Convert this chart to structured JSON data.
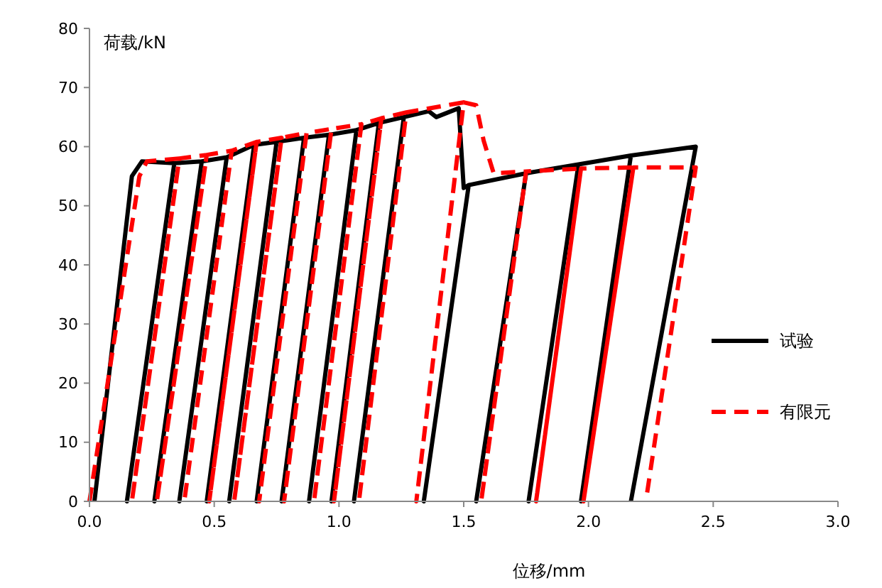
{
  "chart_data": {
    "type": "line",
    "xlabel": "位移/mm",
    "ylabel": "荷载/kN",
    "xlim": [
      0,
      3
    ],
    "ylim": [
      0,
      80
    ],
    "xticks": [
      {
        "value": 0,
        "label": "0.0"
      },
      {
        "value": 0.5,
        "label": "0.5"
      },
      {
        "value": 1,
        "label": "1.0"
      },
      {
        "value": 1.5,
        "label": "1.5"
      },
      {
        "value": 2,
        "label": "2.0"
      },
      {
        "value": 2.5,
        "label": "2.5"
      },
      {
        "value": 3,
        "label": "3.0"
      }
    ],
    "yticks": [
      0,
      10,
      20,
      30,
      40,
      50,
      60,
      70,
      80
    ],
    "grid": false,
    "legend": "right",
    "marker": "none",
    "series": [
      {
        "name": "试验",
        "color": "#000000",
        "line_style": "solid",
        "x": [
          0.02,
          0.17,
          0.21,
          0.34,
          0.15,
          0.34,
          0.45,
          0.26,
          0.45,
          0.55,
          0.36,
          0.55,
          0.66,
          0.47,
          0.66,
          0.75,
          0.56,
          0.75,
          0.86,
          0.67,
          0.86,
          0.96,
          0.77,
          0.96,
          1.07,
          0.88,
          1.07,
          1.16,
          0.97,
          1.16,
          1.26,
          1.06,
          1.26,
          1.36,
          1.39,
          1.48,
          1.5,
          1.52,
          1.34,
          1.52,
          1.75,
          1.55,
          1.75,
          1.96,
          1.76,
          1.96,
          2.17,
          1.97,
          2.17,
          2.43,
          2.17
        ],
        "values": [
          0,
          55,
          57.5,
          57.2,
          0,
          57.2,
          57.5,
          0,
          57.5,
          58.2,
          0,
          58.2,
          60.3,
          0,
          60.3,
          60.8,
          0,
          60.8,
          61.5,
          0,
          61.5,
          62,
          0,
          62,
          62.8,
          0,
          62.8,
          64,
          0,
          64,
          65,
          0,
          65,
          66,
          65,
          66.5,
          53,
          53.5,
          0,
          53.5,
          55.5,
          0,
          55.5,
          57,
          0,
          57,
          58.5,
          0,
          58.5,
          60,
          0
        ]
      },
      {
        "name": "有限元",
        "color": "#ff0000",
        "line_style": "dashed",
        "x": [
          0,
          0.2,
          0.23,
          0.36,
          0.17,
          0.36,
          0.47,
          0.27,
          0.47,
          0.57,
          0.38,
          0.57,
          0.67,
          0.48,
          0.67,
          0.77,
          0.58,
          0.77,
          0.87,
          0.68,
          0.87,
          0.97,
          0.78,
          0.97,
          1.09,
          0.9,
          1.09,
          1.17,
          0.98,
          1.17,
          1.27,
          1.08,
          1.27,
          1.5,
          1.31,
          1.5,
          1.55,
          1.58,
          1.62,
          1.75,
          1.57,
          1.75,
          1.97,
          1.79,
          1.97,
          2.18,
          1.98,
          2.18,
          2.43,
          2.23
        ],
        "values": [
          0,
          55,
          57.5,
          58,
          0,
          58,
          58.6,
          0,
          58.6,
          59.3,
          0,
          59.3,
          60.8,
          0,
          60.8,
          61.5,
          0,
          61.5,
          62.3,
          0,
          62.3,
          63,
          0,
          63,
          63.8,
          0,
          63.8,
          64.8,
          0,
          64.8,
          65.8,
          0,
          65.8,
          67.5,
          0,
          67.5,
          67,
          61,
          55.5,
          55.8,
          0,
          55.8,
          56.3,
          0,
          56.3,
          56.5,
          0,
          56.5,
          56.5,
          0
        ]
      }
    ]
  }
}
